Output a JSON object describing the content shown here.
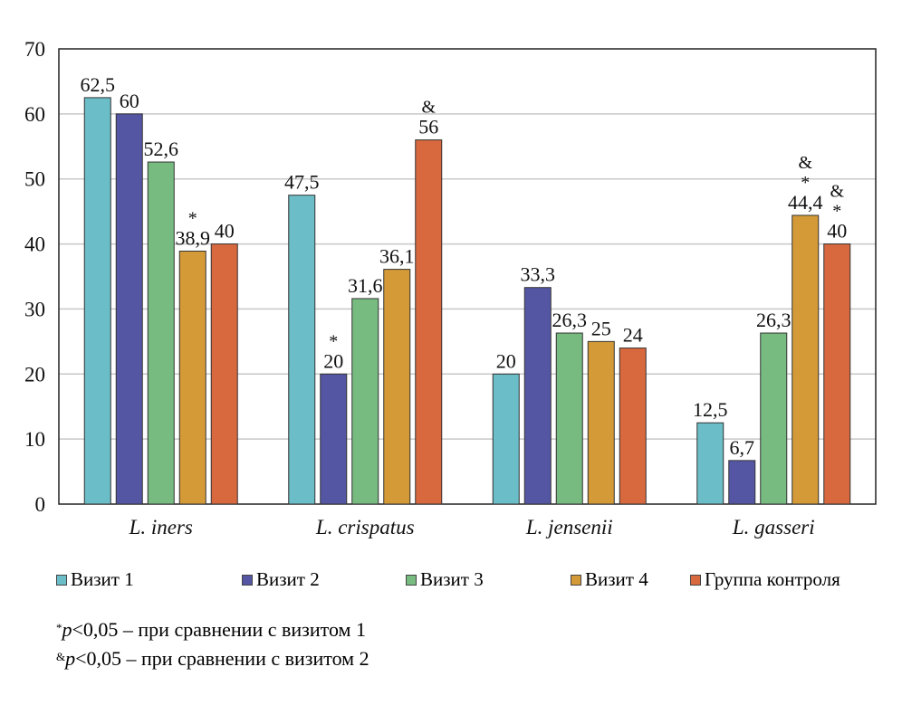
{
  "chart_data": {
    "type": "bar",
    "categories": [
      "L. iners",
      "L. crispatus",
      "L. jensenii",
      "L. gasseri"
    ],
    "series": [
      {
        "name": "Визит 1",
        "color": "#6bbdc8",
        "values": [
          62.5,
          47.5,
          20,
          12.5
        ],
        "labels": [
          "62,5",
          "47,5",
          "20",
          "12,5"
        ],
        "marks": [
          "",
          "",
          "",
          ""
        ]
      },
      {
        "name": "Визит 2",
        "color": "#5456a4",
        "values": [
          60,
          20,
          33.3,
          6.7
        ],
        "labels": [
          "60",
          "20",
          "33,3",
          "6,7"
        ],
        "marks": [
          "",
          "*",
          "",
          ""
        ]
      },
      {
        "name": "Визит 3",
        "color": "#77bb81",
        "values": [
          52.6,
          31.6,
          26.3,
          26.3
        ],
        "labels": [
          "52,6",
          "31,6",
          "26,3",
          "26,3"
        ],
        "marks": [
          "",
          "",
          "",
          ""
        ]
      },
      {
        "name": "Визит 4",
        "color": "#d49a37",
        "values": [
          38.9,
          36.1,
          25,
          44.4
        ],
        "labels": [
          "38,9",
          "36,1",
          "25",
          "44,4"
        ],
        "marks": [
          "*",
          "",
          "",
          "&\n*"
        ]
      },
      {
        "name": "Группа контроля",
        "color": "#d8683e",
        "values": [
          40,
          56,
          24,
          40
        ],
        "labels": [
          "40",
          "56",
          "24",
          "40"
        ],
        "marks": [
          "",
          "&",
          "",
          "&\n*"
        ]
      }
    ],
    "ylim": [
      0,
      70
    ],
    "yticks": [
      "0",
      "10",
      "20",
      "30",
      "40",
      "50",
      "60",
      "70"
    ],
    "grid": true,
    "legend": "bottom",
    "xlabel": "",
    "ylabel": "",
    "title": ""
  },
  "notes": [
    {
      "sup": "*",
      "p": "p",
      "text": "<0,05 – при сравнении с визитом 1"
    },
    {
      "sup": "&",
      "p": "p",
      "text": "<0,05 – при сравнении с визитом 2"
    }
  ]
}
